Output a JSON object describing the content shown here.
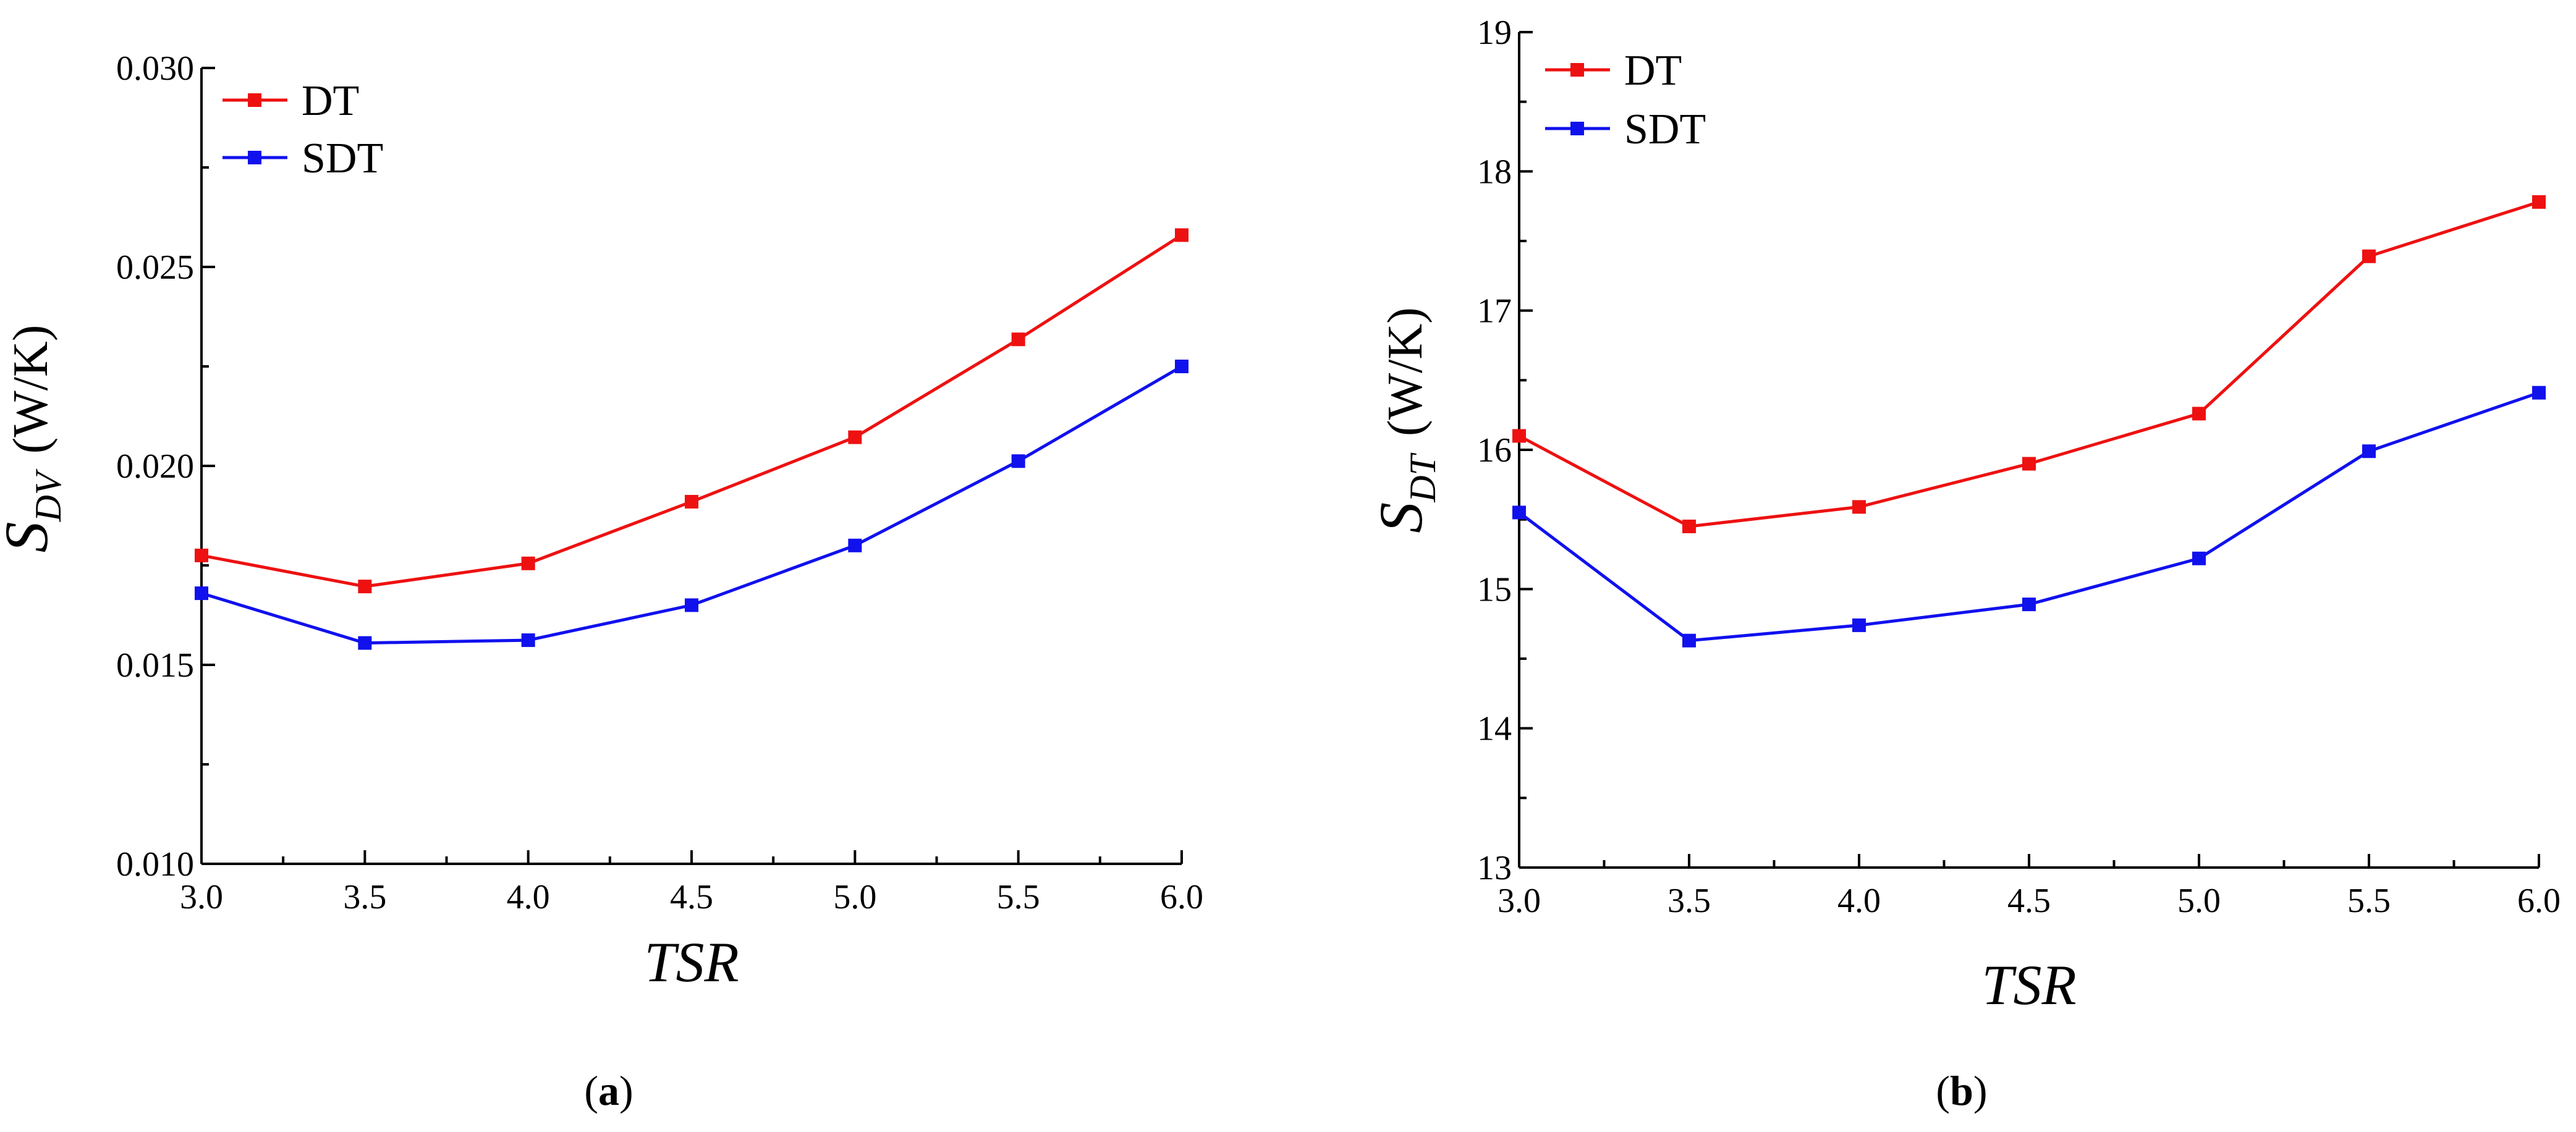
{
  "chart_data": [
    {
      "type": "line",
      "panel_label": "a",
      "x": [
        3.0,
        3.5,
        4.0,
        4.5,
        5.0,
        5.5,
        6.0
      ],
      "series": [
        {
          "name": "DT",
          "color": "#ee1111",
          "values": [
            0.01775,
            0.01697,
            0.01755,
            0.0191,
            0.02072,
            0.02318,
            0.0258
          ]
        },
        {
          "name": "SDT",
          "color": "#1111ee",
          "values": [
            0.0168,
            0.01555,
            0.01562,
            0.0165,
            0.018,
            0.02012,
            0.0225
          ]
        }
      ],
      "xlabel": "TSR",
      "ylabel_symbol": "S",
      "ylabel_sub": "DV",
      "ylabel_unit": "(W/K)",
      "xlim": [
        3.0,
        6.0
      ],
      "ylim": [
        0.01,
        0.03
      ],
      "xticks": [
        "3.0",
        "3.5",
        "4.0",
        "4.5",
        "5.0",
        "5.5",
        "6.0"
      ],
      "yticks": [
        "0.010",
        "0.015",
        "0.020",
        "0.025",
        "0.030"
      ],
      "legend_position": "top-left",
      "caption": "(a)"
    },
    {
      "type": "line",
      "panel_label": "b",
      "x": [
        3.0,
        3.5,
        4.0,
        4.5,
        5.0,
        5.5,
        6.0
      ],
      "series": [
        {
          "name": "DT",
          "color": "#ee1111",
          "values": [
            16.1,
            15.45,
            15.59,
            15.9,
            16.26,
            17.39,
            17.78
          ]
        },
        {
          "name": "SDT",
          "color": "#1111ee",
          "values": [
            15.55,
            14.63,
            14.74,
            14.89,
            15.22,
            15.99,
            16.41
          ]
        }
      ],
      "xlabel": "TSR",
      "ylabel_symbol": "S",
      "ylabel_sub": "DT",
      "ylabel_unit": "(W/K)",
      "xlim": [
        3.0,
        6.0
      ],
      "ylim": [
        13,
        19
      ],
      "xticks": [
        "3.0",
        "3.5",
        "4.0",
        "4.5",
        "5.0",
        "5.5",
        "6.0"
      ],
      "yticks": [
        "13",
        "14",
        "15",
        "16",
        "17",
        "18",
        "19"
      ],
      "legend_position": "top-left",
      "caption": "(b)"
    }
  ]
}
